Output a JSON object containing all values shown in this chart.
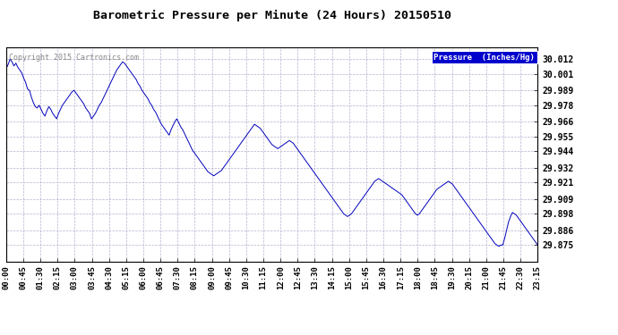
{
  "title": "Barometric Pressure per Minute (24 Hours) 20150510",
  "copyright": "Copyright 2015 Cartronics.com",
  "legend_label": "Pressure  (Inches/Hg)",
  "line_color": "#0000bb",
  "background_color": "#ffffff",
  "grid_color": "#aaaacc",
  "yticks": [
    29.875,
    29.886,
    29.898,
    29.909,
    29.921,
    29.932,
    29.944,
    29.955,
    29.966,
    29.978,
    29.989,
    30.001,
    30.012
  ],
  "ylim": [
    29.863,
    30.021
  ],
  "xtick_labels": [
    "00:00",
    "00:45",
    "01:30",
    "02:15",
    "03:00",
    "03:45",
    "04:30",
    "05:15",
    "06:00",
    "06:45",
    "07:30",
    "08:15",
    "09:00",
    "09:45",
    "10:30",
    "11:15",
    "12:00",
    "12:45",
    "13:30",
    "14:15",
    "15:00",
    "15:45",
    "16:30",
    "17:15",
    "18:00",
    "18:45",
    "19:30",
    "20:15",
    "21:00",
    "21:45",
    "22:30",
    "23:15"
  ],
  "pressure_data": [
    30.005,
    30.008,
    30.012,
    30.01,
    30.007,
    30.009,
    30.006,
    30.004,
    30.002,
    29.998,
    29.995,
    29.99,
    29.989,
    29.984,
    29.98,
    29.977,
    29.976,
    29.978,
    29.975,
    29.972,
    29.97,
    29.974,
    29.977,
    29.975,
    29.972,
    29.97,
    29.968,
    29.972,
    29.975,
    29.978,
    29.98,
    29.982,
    29.984,
    29.986,
    29.988,
    29.989,
    29.987,
    29.985,
    29.983,
    29.981,
    29.979,
    29.976,
    29.974,
    29.972,
    29.968,
    29.97,
    29.972,
    29.975,
    29.978,
    29.98,
    29.983,
    29.986,
    29.989,
    29.992,
    29.995,
    29.998,
    30.001,
    30.004,
    30.006,
    30.008,
    30.01,
    30.009,
    30.007,
    30.005,
    30.003,
    30.001,
    29.999,
    29.997,
    29.994,
    29.992,
    29.989,
    29.987,
    29.985,
    29.983,
    29.98,
    29.978,
    29.975,
    29.973,
    29.97,
    29.967,
    29.964,
    29.962,
    29.96,
    29.958,
    29.956,
    29.96,
    29.963,
    29.966,
    29.968,
    29.965,
    29.962,
    29.96,
    29.957,
    29.954,
    29.951,
    29.948,
    29.945,
    29.943,
    29.941,
    29.939,
    29.937,
    29.935,
    29.933,
    29.931,
    29.929,
    29.928,
    29.927,
    29.926,
    29.927,
    29.928,
    29.929,
    29.93,
    29.932,
    29.934,
    29.936,
    29.938,
    29.94,
    29.942,
    29.944,
    29.946,
    29.948,
    29.95,
    29.952,
    29.954,
    29.956,
    29.958,
    29.96,
    29.962,
    29.964,
    29.963,
    29.962,
    29.961,
    29.959,
    29.957,
    29.955,
    29.953,
    29.951,
    29.949,
    29.948,
    29.947,
    29.946,
    29.947,
    29.948,
    29.949,
    29.95,
    29.951,
    29.952,
    29.951,
    29.95,
    29.948,
    29.946,
    29.944,
    29.942,
    29.94,
    29.938,
    29.936,
    29.934,
    29.932,
    29.93,
    29.928,
    29.926,
    29.924,
    29.922,
    29.92,
    29.918,
    29.916,
    29.914,
    29.912,
    29.91,
    29.908,
    29.906,
    29.904,
    29.902,
    29.9,
    29.898,
    29.897,
    29.896,
    29.897,
    29.898,
    29.9,
    29.902,
    29.904,
    29.906,
    29.908,
    29.91,
    29.912,
    29.914,
    29.916,
    29.918,
    29.92,
    29.922,
    29.923,
    29.924,
    29.923,
    29.922,
    29.921,
    29.92,
    29.919,
    29.918,
    29.917,
    29.916,
    29.915,
    29.914,
    29.913,
    29.912,
    29.91,
    29.908,
    29.906,
    29.904,
    29.902,
    29.9,
    29.898,
    29.897,
    29.898,
    29.9,
    29.902,
    29.904,
    29.906,
    29.908,
    29.91,
    29.912,
    29.914,
    29.916,
    29.917,
    29.918,
    29.919,
    29.92,
    29.921,
    29.922,
    29.921,
    29.92,
    29.918,
    29.916,
    29.914,
    29.912,
    29.91,
    29.908,
    29.906,
    29.904,
    29.902,
    29.9,
    29.898,
    29.896,
    29.894,
    29.892,
    29.89,
    29.888,
    29.886,
    29.884,
    29.882,
    29.88,
    29.878,
    29.876,
    29.875,
    29.874,
    29.875,
    29.875,
    29.88,
    29.886,
    29.892,
    29.896,
    29.899,
    29.898,
    29.897,
    29.895,
    29.893,
    29.891,
    29.889,
    29.887,
    29.885,
    29.883,
    29.881,
    29.879,
    29.877,
    29.875
  ]
}
